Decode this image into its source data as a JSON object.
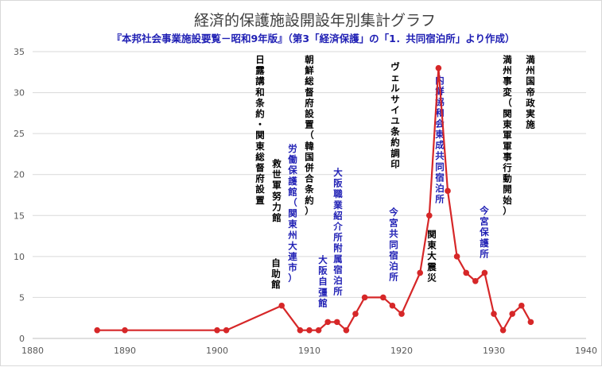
{
  "chart_data": {
    "type": "line",
    "title": "経済的保護施設開設年別集計グラフ",
    "subtitle": "『本邦社会事業施設要覧－昭和9年版』（第3「経済保護」の「1．共同宿泊所」より作成）",
    "xlabel": "",
    "ylabel": "",
    "xlim": [
      1880,
      1940
    ],
    "ylim": [
      0,
      35
    ],
    "x_ticks": [
      1880,
      1890,
      1900,
      1910,
      1920,
      1930,
      1940
    ],
    "y_ticks": [
      0,
      5,
      10,
      15,
      20,
      25,
      30,
      35
    ],
    "grid": "horizontal",
    "series_color": "#d62728",
    "series": [
      {
        "x": [
          1887,
          1890,
          1900,
          1901,
          1907,
          1909,
          1910,
          1911,
          1912,
          1913,
          1914,
          1915,
          1916,
          1918,
          1919,
          1920,
          1922,
          1923,
          1924,
          1925,
          1926,
          1927,
          1928,
          1929,
          1930,
          1931,
          1932,
          1933,
          1934
        ],
        "values": [
          1,
          1,
          1,
          1,
          4,
          1,
          1,
          1,
          2,
          2,
          1,
          3,
          5,
          5,
          4,
          3,
          8,
          15,
          33,
          18,
          10,
          8,
          7,
          8,
          3,
          1,
          3,
          4,
          2
        ]
      }
    ],
    "annotations": [
      {
        "text": "日露講和条約・関東総督府設置",
        "color": "#000000"
      },
      {
        "text": "労働保護館（関東州大連市）",
        "color": "#1f1fb4"
      },
      {
        "text": "救世軍努力館",
        "color": "#000000"
      },
      {
        "text": "自助館",
        "color": "#000000"
      },
      {
        "text": "朝鮮総督府設置（韓国併合条約）",
        "color": "#000000"
      },
      {
        "text": "大阪自彊館",
        "color": "#1f1fb4"
      },
      {
        "text": "大阪職業紹介所附属宿泊所",
        "color": "#1f1fb4"
      },
      {
        "text": "ヴェルサイユ条約調印",
        "color": "#000000"
      },
      {
        "text": "今宮共同宿泊所",
        "color": "#1f1fb4"
      },
      {
        "text": "関東大震災",
        "color": "#000000"
      },
      {
        "text": "内鮮協和会東成共同宿泊所",
        "color": "#1f1fb4"
      },
      {
        "text": "今宮保護所",
        "color": "#1f1fb4"
      },
      {
        "text": "満州事変（関東軍軍事行動開始）",
        "color": "#000000"
      },
      {
        "text": "満州国帝政実施",
        "color": "#000000"
      }
    ]
  }
}
